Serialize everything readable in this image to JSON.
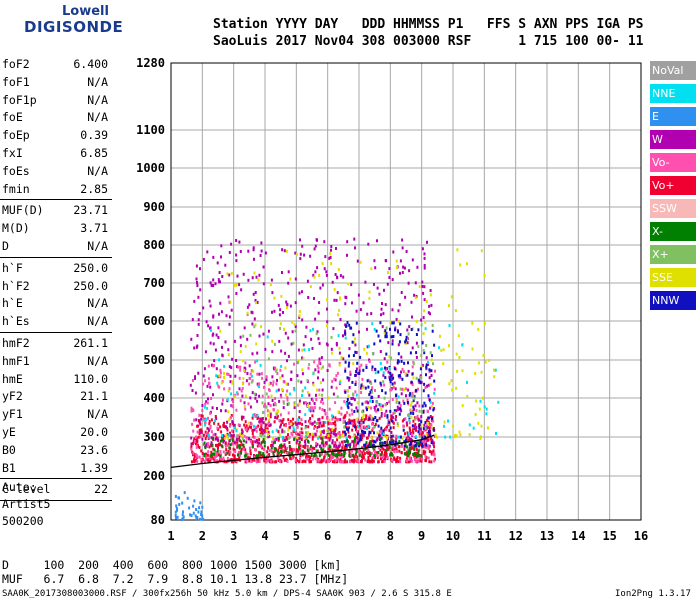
{
  "logo": {
    "line1": "Lowell",
    "line2": "DIGISONDE"
  },
  "header": {
    "row1": "Station YYYY DAY   DDD HHMMSS P1   FFS S AXN PPS IGA PS",
    "row2": "SaoLuis 2017 Nov04 308 003000 RSF      1 715 100 00- 11"
  },
  "parameters": [
    {
      "name": "foF2",
      "value": "6.400"
    },
    {
      "name": "foF1",
      "value": "N/A"
    },
    {
      "name": "foF1p",
      "value": "N/A"
    },
    {
      "name": "foE",
      "value": "N/A"
    },
    {
      "name": "foEp",
      "value": "0.39"
    },
    {
      "name": "fxI",
      "value": "6.85"
    },
    {
      "name": "foEs",
      "value": "N/A"
    },
    {
      "name": "fmin",
      "value": "2.85"
    },
    {
      "name": "MUF(D)",
      "value": "23.71"
    },
    {
      "name": "M(D)",
      "value": "3.71"
    },
    {
      "name": "D",
      "value": "N/A"
    },
    {
      "name": "h`F",
      "value": "250.0"
    },
    {
      "name": "h`F2",
      "value": "250.0"
    },
    {
      "name": "h`E",
      "value": "N/A"
    },
    {
      "name": "h`Es",
      "value": "N/A"
    },
    {
      "name": "hmF2",
      "value": "261.1"
    },
    {
      "name": "hmF1",
      "value": "N/A"
    },
    {
      "name": "hmE",
      "value": "110.0"
    },
    {
      "name": "yF2",
      "value": "21.1"
    },
    {
      "name": "yF1",
      "value": "N/A"
    },
    {
      "name": "yE",
      "value": "20.0"
    },
    {
      "name": "B0",
      "value": "23.6"
    },
    {
      "name": "B1",
      "value": "1.39"
    },
    {
      "name": "C-level",
      "value": "22"
    }
  ],
  "autoscale": {
    "line1": "Auto:",
    "line2": "Artist5",
    "line3": "500200"
  },
  "legend": [
    {
      "label": "NoVal",
      "color": "#a0a0a0"
    },
    {
      "label": "NNE",
      "color": "#00e0f0"
    },
    {
      "label": "E",
      "color": "#3090f0"
    },
    {
      "label": "W",
      "color": "#b000b0"
    },
    {
      "label": "Vo-",
      "color": "#ff50b0"
    },
    {
      "label": "Vo+",
      "color": "#f00030"
    },
    {
      "label": "SSW",
      "color": "#f8b8b8"
    },
    {
      "label": "X-",
      "color": "#008000"
    },
    {
      "label": "X+",
      "color": "#80c060"
    },
    {
      "label": "SSE",
      "color": "#e0e000"
    },
    {
      "label": "NNW",
      "color": "#1010c0"
    }
  ],
  "footer": {
    "row1": "D     100  200  400  600  800 1000 1500 3000 [km]",
    "row2": "MUF   6.7  6.8  7.2  7.9  8.8 10.1 13.8 23.7 [MHz]",
    "row3": "SAA0K_2017308003000.RSF / 300fx256h 50 kHz 5.0 km / DPS-4 SAA0K 903 / 2.6 S 315.8 E",
    "version": "Ion2Png 1.3.17"
  },
  "chart_data": {
    "type": "scatter",
    "title": "",
    "xlabel": "",
    "ylabel": "",
    "xlim": [
      1,
      16
    ],
    "ylim": [
      80,
      1280
    ],
    "x_ticks": [
      "1",
      "2",
      "3",
      "4",
      "5",
      "6",
      "7",
      "8",
      "9",
      "10",
      "11",
      "12",
      "13",
      "14",
      "15",
      "16"
    ],
    "y_ticks": [
      "80",
      "200",
      "300",
      "400",
      "500",
      "600",
      "700",
      "800",
      "900",
      "1000",
      "1100",
      "1280"
    ],
    "grid": true,
    "profile_curve": {
      "x": [
        1.0,
        2.0,
        3.0,
        4.0,
        5.0,
        6.0,
        7.0,
        8.0,
        9.0,
        9.4
      ],
      "y": [
        222,
        232,
        240,
        248,
        255,
        262,
        270,
        280,
        293,
        305
      ]
    },
    "trace_regions": [
      {
        "name": "Vo+ F-trace",
        "color_key": "Vo+",
        "x_range": [
          1.6,
          9.4
        ],
        "y_range": [
          240,
          360
        ],
        "points": 900
      },
      {
        "name": "W spread",
        "color_key": "W",
        "x_range": [
          1.6,
          9.4
        ],
        "y_range": [
          280,
          820
        ],
        "points": 700
      },
      {
        "name": "Vo- spread",
        "color_key": "Vo-",
        "x_range": [
          1.6,
          9.4
        ],
        "y_range": [
          240,
          500
        ],
        "points": 500
      },
      {
        "name": "SSE spread",
        "color_key": "SSE",
        "x_range": [
          2.5,
          11.3
        ],
        "y_range": [
          300,
          800
        ],
        "points": 250
      },
      {
        "name": "NNW spread",
        "color_key": "NNW",
        "x_range": [
          6.5,
          9.4
        ],
        "y_range": [
          280,
          600
        ],
        "points": 250
      },
      {
        "name": "X- trace",
        "color_key": "X-",
        "x_range": [
          2.0,
          9.0
        ],
        "y_range": [
          255,
          300
        ],
        "points": 150
      },
      {
        "name": "NNE spread",
        "color_key": "NNE",
        "x_range": [
          2.0,
          11.5
        ],
        "y_range": [
          300,
          600
        ],
        "points": 100
      },
      {
        "name": "X+ spread",
        "color_key": "X+",
        "x_range": [
          2.5,
          9.5
        ],
        "y_range": [
          300,
          600
        ],
        "points": 80
      },
      {
        "name": "E low",
        "color_key": "E",
        "x_range": [
          1.1,
          2.0
        ],
        "y_range": [
          85,
          160
        ],
        "points": 40
      }
    ]
  }
}
